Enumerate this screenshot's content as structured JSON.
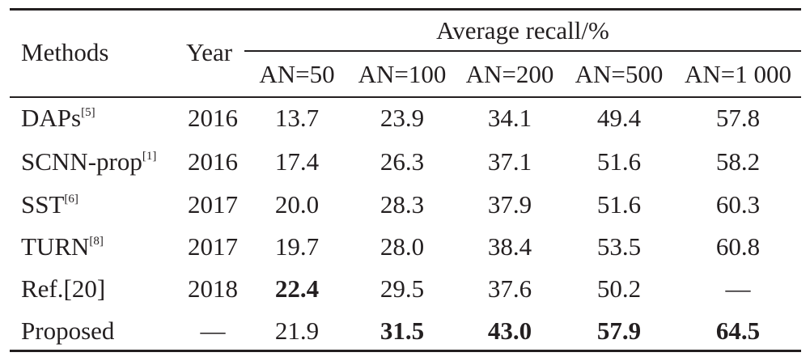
{
  "table": {
    "header": {
      "methods": "Methods",
      "year": "Year",
      "group": "Average recall/%",
      "columns": [
        "AN=50",
        "AN=100",
        "AN=200",
        "AN=500",
        "AN=1 000"
      ]
    },
    "rows": [
      {
        "method": "DAPs",
        "ref": "[5]",
        "year": "2016",
        "values": [
          "13.7",
          "23.9",
          "34.1",
          "49.4",
          "57.8"
        ]
      },
      {
        "method": "SCNN-prop",
        "ref": "[1]",
        "year": "2016",
        "values": [
          "17.4",
          "26.3",
          "37.1",
          "51.6",
          "58.2"
        ]
      },
      {
        "method": "SST",
        "ref": "[6]",
        "year": "2017",
        "values": [
          "20.0",
          "28.3",
          "37.9",
          "51.6",
          "60.3"
        ]
      },
      {
        "method": "TURN",
        "ref": "[8]",
        "year": "2017",
        "values": [
          "19.7",
          "28.0",
          "38.4",
          "53.5",
          "60.8"
        ]
      },
      {
        "method": "Ref.[20]",
        "ref": "",
        "year": "2018",
        "values": [
          "22.4",
          "29.5",
          "37.6",
          "50.2",
          "—"
        ]
      },
      {
        "method": "Proposed",
        "ref": "",
        "year": "—",
        "values": [
          "21.9",
          "31.5",
          "43.0",
          "57.9",
          "64.5"
        ]
      }
    ],
    "bold_cells": [
      "4.0",
      "5.1",
      "5.2",
      "5.3",
      "5.4"
    ]
  }
}
